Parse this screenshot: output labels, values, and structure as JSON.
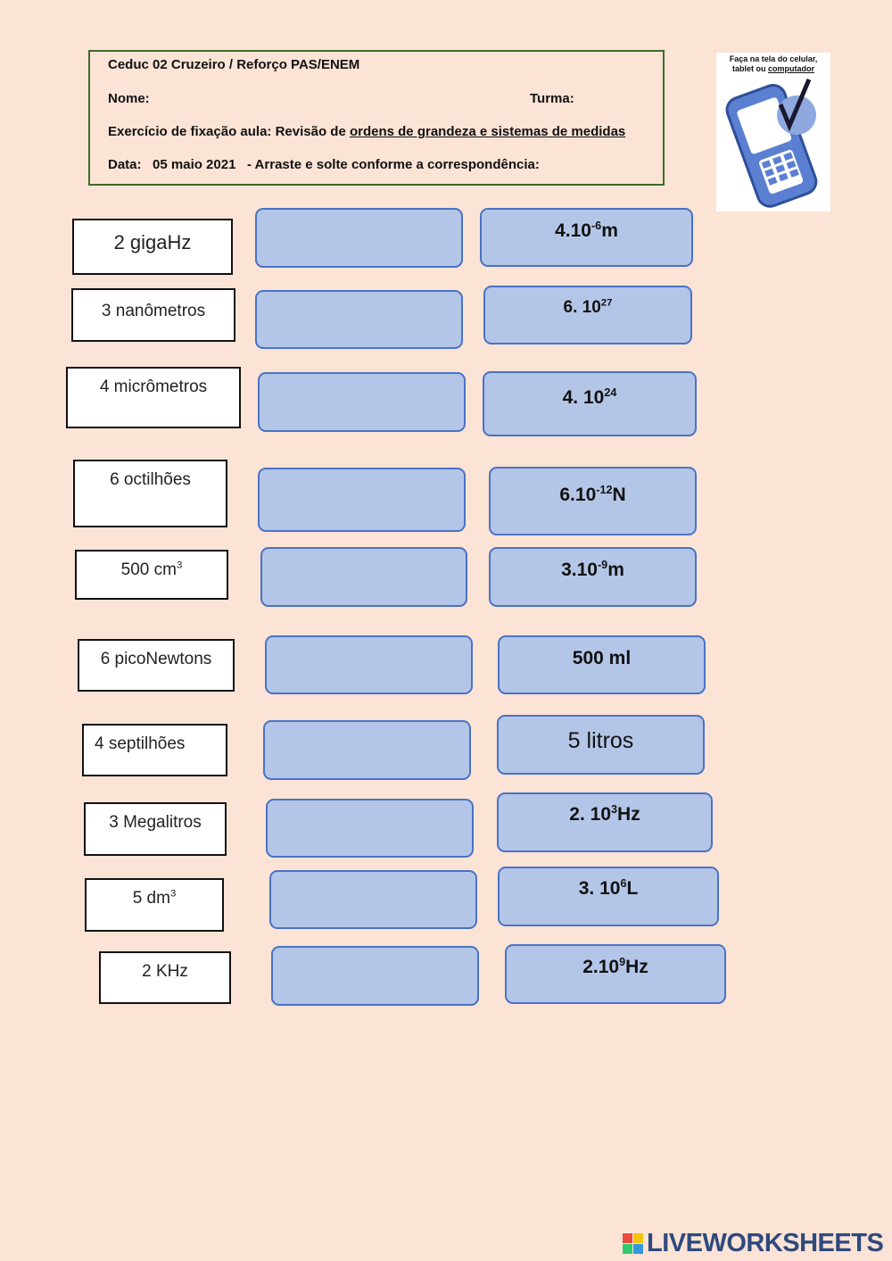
{
  "header": {
    "school": "Ceduc 02 Cruzeiro / Reforço PAS/ENEM",
    "name_label": "Nome:",
    "class_label": "Turma:",
    "exercise_prefix": "Exercício de fixação aula: Revisão de ",
    "exercise_topic": "ordens de grandeza e sistemas de medidas",
    "date_label": "Data:",
    "date_value": "05 maio 2021",
    "instruction": "-  Arraste e solte conforme a correspondência:"
  },
  "badge": {
    "line1": "Faça na tela do celular,",
    "line2_a": "tablet ou ",
    "line2_b": "computador",
    "icon": "phone-check-icon"
  },
  "labels": [
    {
      "text": "2 gigaHz"
    },
    {
      "text": "3 nanômetros"
    },
    {
      "text": "4 micrômetros"
    },
    {
      "text": "6 octilhões"
    },
    {
      "text": "500 cm",
      "sup": "3"
    },
    {
      "text": "6 picoNewtons"
    },
    {
      "text": "4 septilhões"
    },
    {
      "text": "3 Megalitros"
    },
    {
      "text": "5 dm",
      "sup": "3"
    },
    {
      "text": "2 KHz"
    }
  ],
  "answers": [
    {
      "base": "4.10",
      "sup": "-6",
      "tail": "m"
    },
    {
      "base": "6. 10",
      "sup": "27",
      "tail": ""
    },
    {
      "base": "4. 10",
      "sup": "24",
      "tail": ""
    },
    {
      "base": "6.10",
      "sup": "-12",
      "tail": "N"
    },
    {
      "base": "3.10",
      "sup": "-9",
      "tail": "m"
    },
    {
      "base": "500 ml",
      "sup": "",
      "tail": ""
    },
    {
      "base": "5 litros",
      "sup": "",
      "tail": ""
    },
    {
      "base": "2. 10",
      "sup": "3",
      "tail": "Hz"
    },
    {
      "base": "3. 10",
      "sup": "6",
      "tail": "L"
    },
    {
      "base": "2.10",
      "sup": "9",
      "tail": "Hz"
    }
  ],
  "footer": {
    "logo_text": "LIVEWORKSHEETS",
    "logo_colors": [
      "#e74c3c",
      "#f1c40f",
      "#2ecc71",
      "#3498db"
    ]
  }
}
